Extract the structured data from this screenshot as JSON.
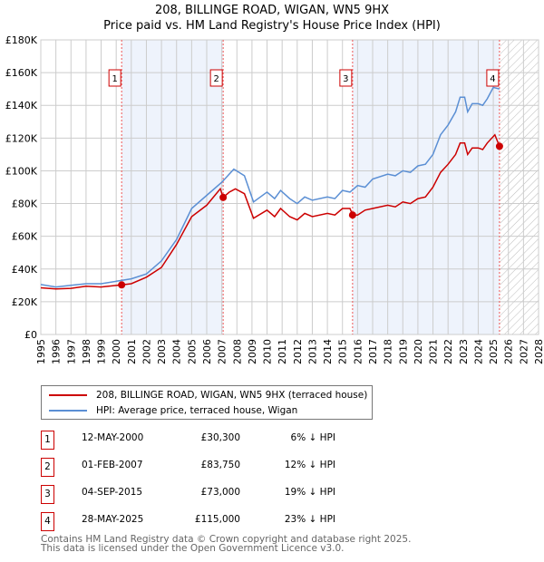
{
  "chart_data": {
    "type": "line",
    "title": "208, BILLINGE ROAD, WIGAN, WN5 9HX",
    "subtitle": "Price paid vs. HM Land Registry's House Price Index (HPI)",
    "xlim": [
      1995,
      2028
    ],
    "ylim": [
      0,
      180000
    ],
    "y_ticks": [
      "£0",
      "£20K",
      "£40K",
      "£60K",
      "£80K",
      "£100K",
      "£120K",
      "£140K",
      "£160K",
      "£180K"
    ],
    "y_tick_values": [
      0,
      20000,
      40000,
      60000,
      80000,
      100000,
      120000,
      140000,
      160000,
      180000
    ],
    "x_ticks": [
      "1995",
      "1996",
      "1997",
      "1998",
      "1999",
      "2000",
      "2001",
      "2002",
      "2003",
      "2004",
      "2005",
      "2006",
      "2007",
      "2008",
      "2009",
      "2010",
      "2011",
      "2012",
      "2013",
      "2014",
      "2015",
      "2016",
      "2017",
      "2018",
      "2019",
      "2020",
      "2021",
      "2022",
      "2023",
      "2024",
      "2025",
      "2026",
      "2027",
      "2028"
    ],
    "grid": true,
    "colors": {
      "price": "#cc0000",
      "hpi": "#5b8fd4",
      "shade": "#eef3fc"
    },
    "shaded_ranges": [
      [
        2000.36,
        2007.09
      ],
      [
        2015.67,
        2025.41
      ]
    ],
    "forecast_hatch_from": 2025.45,
    "series": [
      {
        "name": "208, BILLINGE ROAD, WIGAN, WN5 9HX (terraced house)",
        "color": "#cc0000",
        "x": [
          1995,
          1996,
          1997,
          1998,
          1999,
          2000.36,
          2001,
          2002,
          2003,
          2004,
          2005,
          2006,
          2006.9,
          2007.09,
          2007.5,
          2007.9,
          2008.5,
          2009.1,
          2010,
          2010.5,
          2010.9,
          2011.5,
          2012,
          2012.5,
          2013,
          2014,
          2014.5,
          2015,
          2015.5,
          2015.67,
          2016,
          2016.5,
          2017,
          2018,
          2018.5,
          2019,
          2019.5,
          2020,
          2020.5,
          2021,
          2021.5,
          2022,
          2022.5,
          2022.8,
          2023.1,
          2023.3,
          2023.6,
          2024,
          2024.3,
          2024.6,
          2025.1,
          2025.41
        ],
        "values": [
          28500,
          27800,
          28200,
          29500,
          29000,
          30300,
          31000,
          35000,
          41000,
          55000,
          72000,
          79000,
          89000,
          83750,
          87000,
          89000,
          86000,
          71000,
          76000,
          72000,
          77000,
          72000,
          70000,
          74000,
          72000,
          74000,
          73000,
          77000,
          77000,
          73000,
          73000,
          76000,
          77000,
          79000,
          78000,
          81000,
          80000,
          83000,
          84000,
          90000,
          99000,
          104000,
          110000,
          117000,
          117000,
          110000,
          114000,
          114000,
          113000,
          117000,
          122000,
          115000
        ]
      },
      {
        "name": "HPI: Average price, terraced house, Wigan",
        "color": "#5b8fd4",
        "x": [
          1995,
          1996,
          1997,
          1998,
          1999,
          2000,
          2001,
          2002,
          2003,
          2004,
          2005,
          2006,
          2007,
          2007.8,
          2008.5,
          2009.1,
          2010,
          2010.5,
          2010.9,
          2011.5,
          2012,
          2012.5,
          2013,
          2014,
          2014.5,
          2015,
          2015.5,
          2016,
          2016.5,
          2017,
          2018,
          2018.5,
          2019,
          2019.5,
          2020,
          2020.5,
          2021,
          2021.5,
          2022,
          2022.5,
          2022.8,
          2023.1,
          2023.3,
          2023.6,
          2024,
          2024.3,
          2024.6,
          2025,
          2025.41
        ],
        "values": [
          30500,
          29000,
          30000,
          31000,
          31000,
          32500,
          34000,
          37000,
          45000,
          58000,
          77000,
          85000,
          93000,
          101000,
          97000,
          81000,
          87000,
          83000,
          88000,
          83000,
          80000,
          84000,
          82000,
          84000,
          83000,
          88000,
          87000,
          91000,
          90000,
          95000,
          98000,
          97000,
          100000,
          99000,
          103000,
          104000,
          110000,
          122000,
          128000,
          136000,
          145000,
          145000,
          136000,
          141000,
          141000,
          140000,
          144000,
          151000,
          150000
        ]
      }
    ],
    "sales": [
      {
        "label": "1",
        "x": 2000.36,
        "value": 30300,
        "date": "12-MAY-2000",
        "price": "£30,300",
        "hpi_diff": "6% ↓ HPI"
      },
      {
        "label": "2",
        "x": 2007.09,
        "value": 83750,
        "date": "01-FEB-2007",
        "price": "£83,750",
        "hpi_diff": "12% ↓ HPI"
      },
      {
        "label": "3",
        "x": 2015.67,
        "value": 73000,
        "date": "04-SEP-2015",
        "price": "£73,000",
        "hpi_diff": "19% ↓ HPI"
      },
      {
        "label": "4",
        "x": 2025.41,
        "value": 115000,
        "date": "28-MAY-2025",
        "price": "£115,000",
        "hpi_diff": "23% ↓ HPI"
      }
    ]
  },
  "legend": {
    "price_label": "208, BILLINGE ROAD, WIGAN, WN5 9HX (terraced house)",
    "hpi_label": "HPI: Average price, terraced house, Wigan"
  },
  "footer": {
    "line1": "Contains HM Land Registry data © Crown copyright and database right 2025.",
    "line2": "This data is licensed under the Open Government Licence v3.0."
  }
}
